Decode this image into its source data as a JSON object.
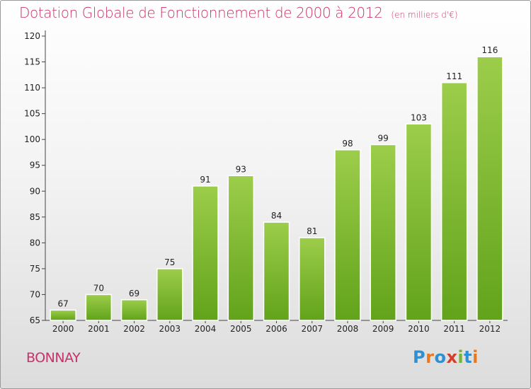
{
  "header": {
    "title": "Dotation Globale de Fonctionnement de 2000 à 2012",
    "unit": "(en milliers d'€)"
  },
  "footer": {
    "commune": "BONNAY",
    "logo_text": "Proxiti"
  },
  "colors": {
    "title": "#c8336a",
    "bar_light": "#9ccd4b",
    "bar_dark": "#62a31b",
    "logo": [
      "#2f8fd0",
      "#e8791e",
      "#2f8fd0",
      "#d83c2a",
      "#7ab332",
      "#2f8fd0",
      "#e8791e"
    ]
  },
  "chart_data": {
    "type": "bar",
    "categories": [
      "2000",
      "2001",
      "2002",
      "2003",
      "2004",
      "2005",
      "2006",
      "2007",
      "2008",
      "2009",
      "2010",
      "2011",
      "2012"
    ],
    "values": [
      67,
      70,
      69,
      75,
      91,
      93,
      84,
      81,
      98,
      99,
      103,
      111,
      116
    ],
    "ylim": [
      65,
      120
    ],
    "yticks": [
      65,
      70,
      75,
      80,
      85,
      90,
      95,
      100,
      105,
      110,
      115,
      120
    ],
    "grid": false,
    "legend": "none"
  }
}
